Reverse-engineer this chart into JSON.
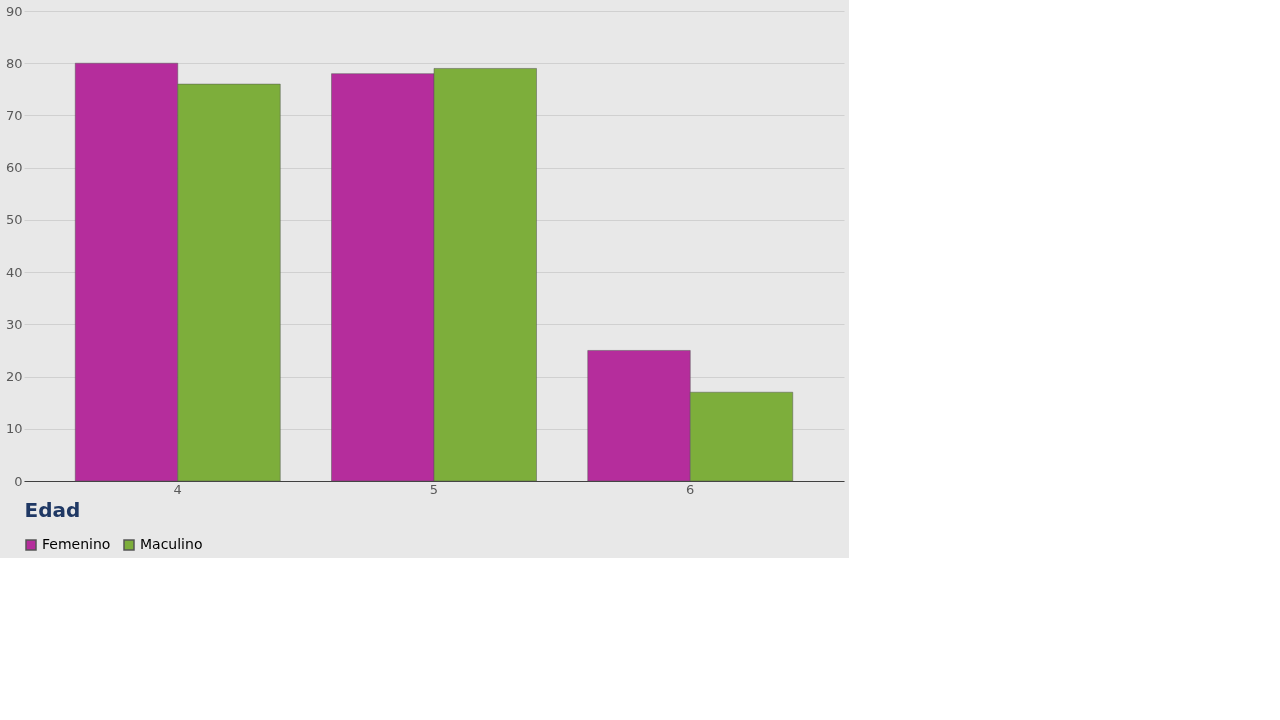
{
  "chart_data": {
    "type": "bar",
    "xlabel": "Edad",
    "categories": [
      "4",
      "5",
      "6"
    ],
    "series": [
      {
        "name": "Femenino",
        "color": "#b52d9c",
        "values": [
          80,
          78,
          25
        ]
      },
      {
        "name": "Maculino",
        "color": "#7dae3b",
        "values": [
          76,
          79,
          17
        ]
      }
    ],
    "ylim": [
      0,
      90
    ],
    "yticks": [
      0,
      10,
      20,
      30,
      40,
      50,
      60,
      70,
      80,
      90
    ],
    "grid": "y",
    "legend": "bottom"
  }
}
